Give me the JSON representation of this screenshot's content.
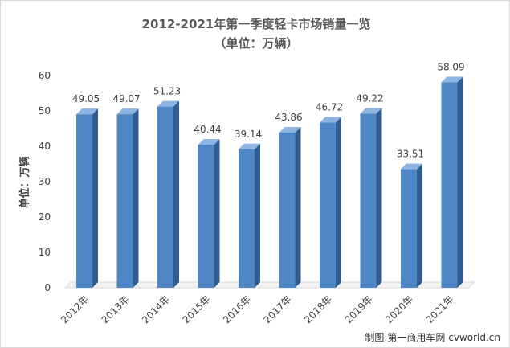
{
  "chart_data": {
    "type": "bar",
    "title": "2012-2021年第一季度轻卡市场销量一览",
    "subtitle": "（单位：万辆）",
    "ylabel": "单位：万辆",
    "xlabel": "",
    "categories": [
      "2012年",
      "2013年",
      "2014年",
      "2015年",
      "2016年",
      "2017年",
      "2018年",
      "2019年",
      "2020年",
      "2021年"
    ],
    "values": [
      49.05,
      49.07,
      51.23,
      40.44,
      39.14,
      43.86,
      46.72,
      49.22,
      33.51,
      58.09
    ],
    "data_labels": [
      "49.05",
      "49.07",
      "51.23",
      "40.44",
      "39.14",
      "43.86",
      "46.72",
      "49.22",
      "33.51",
      "58.09"
    ],
    "ylim": [
      0,
      60
    ],
    "yticks": [
      "0",
      "10",
      "20",
      "30",
      "40",
      "50",
      "60"
    ],
    "grid": false,
    "legend": "none",
    "colors": {
      "bar_front": "#4f86c6",
      "bar_side": "#2f5d8f",
      "bar_top": "#8db4e2",
      "floor": "#f2f2f2"
    }
  },
  "watermark": "制图:第一商用车网 cvworld.cn"
}
